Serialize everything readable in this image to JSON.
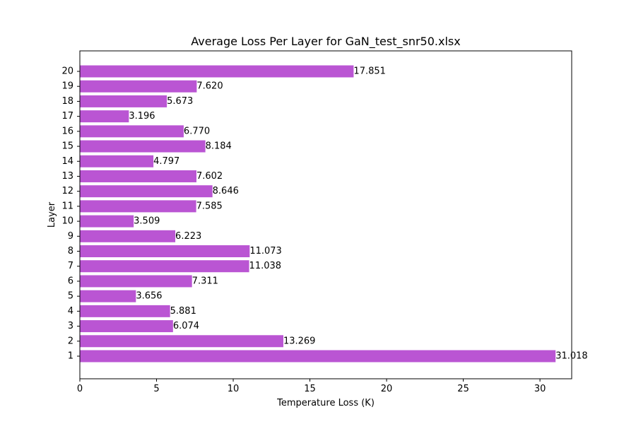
{
  "chart_data": {
    "type": "bar",
    "orientation": "horizontal",
    "title": "Average Loss Per Layer for GaN_test_snr50.xlsx",
    "xlabel": "Temperature Loss (K)",
    "ylabel": "Layer",
    "categories": [
      "1",
      "2",
      "3",
      "4",
      "5",
      "6",
      "7",
      "8",
      "9",
      "10",
      "11",
      "12",
      "13",
      "14",
      "15",
      "16",
      "17",
      "18",
      "19",
      "20"
    ],
    "values": [
      31.018,
      13.269,
      6.074,
      5.881,
      3.656,
      7.311,
      11.038,
      11.073,
      6.223,
      3.509,
      7.585,
      8.646,
      7.602,
      4.797,
      8.184,
      6.77,
      3.196,
      5.673,
      7.62,
      17.851
    ],
    "data_labels": [
      "31.018",
      "13.269",
      "6.074",
      "5.881",
      "3.656",
      "7.311",
      "11.038",
      "11.073",
      "6.223",
      "3.509",
      "7.585",
      "8.646",
      "7.602",
      "4.797",
      "8.184",
      "6.770",
      "3.196",
      "5.673",
      "7.620",
      "17.851"
    ],
    "xlim": [
      0,
      32.0689
    ],
    "xticks": [
      0,
      5,
      10,
      15,
      20,
      25,
      30
    ],
    "xtick_labels": [
      "0",
      "5",
      "10",
      "15",
      "20",
      "25",
      "30"
    ],
    "bar_color": "#ba55d3",
    "grid": false,
    "legend": "none"
  }
}
